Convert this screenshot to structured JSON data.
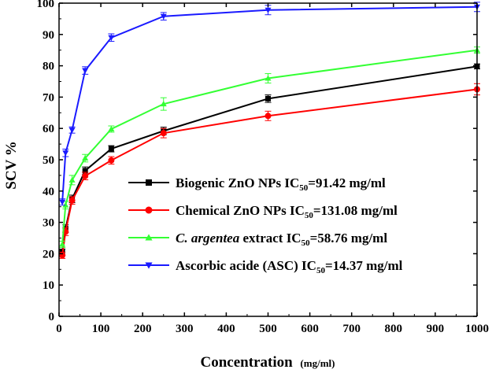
{
  "chart_data": {
    "type": "line",
    "xlabel": "Concentration",
    "xlabel_unit": "(mg/ml)",
    "ylabel": "SCV %",
    "xlim": [
      0,
      1000
    ],
    "ylim": [
      0,
      100
    ],
    "x_ticks": [
      0,
      100,
      200,
      300,
      400,
      500,
      600,
      700,
      800,
      900,
      1000
    ],
    "y_ticks": [
      0,
      10,
      20,
      30,
      40,
      50,
      60,
      70,
      80,
      90,
      100
    ],
    "grid": false,
    "legend_position": "center-right",
    "series": [
      {
        "name": "Biogenic ZnO NPs IC50=91.42 mg/ml",
        "legend_parts": [
          "Biogenic ZnO NPs IC",
          "50",
          "=91.42 mg/ml"
        ],
        "color": "#000000",
        "marker": "square",
        "x": [
          7.8,
          15.6,
          31.25,
          62.5,
          125,
          250,
          500,
          1000
        ],
        "y": [
          20.5,
          28.0,
          37.5,
          46.5,
          53.5,
          59.2,
          69.5,
          79.8
        ],
        "error": [
          1.0,
          1.2,
          1.2,
          1.2,
          1.0,
          1.2,
          1.2,
          0.8
        ]
      },
      {
        "name": "Chemical ZnO NPs IC50=131.08 mg/ml",
        "legend_parts": [
          "Chemical ZnO NPs IC",
          "50",
          "=131.08 mg/ml"
        ],
        "color": "#ff0000",
        "marker": "circle",
        "x": [
          7.8,
          15.6,
          31.25,
          62.5,
          125,
          250,
          500,
          1000
        ],
        "y": [
          19.5,
          27.0,
          37.0,
          44.8,
          49.8,
          58.5,
          64.0,
          72.5
        ],
        "error": [
          1.0,
          1.2,
          1.2,
          1.2,
          1.2,
          1.5,
          1.5,
          1.8
        ]
      },
      {
        "name": "C. argentea extract IC50=58.76 mg/ml",
        "legend_parts": [
          "C. argentea",
          " extract IC",
          "50",
          "=58.76 mg/ml"
        ],
        "color": "#33ff33",
        "marker": "triangle-up",
        "x": [
          7.8,
          15.6,
          31.25,
          62.5,
          125,
          250,
          500,
          1000
        ],
        "y": [
          23.0,
          35.5,
          43.5,
          50.5,
          59.8,
          67.8,
          76.0,
          85.0
        ],
        "error": [
          1.0,
          1.2,
          1.5,
          1.2,
          1.0,
          2.0,
          1.5,
          1.0
        ]
      },
      {
        "name": "Ascorbic acide (ASC) IC50=14.37 mg/ml",
        "legend_parts": [
          "Ascorbic acide (ASC) IC",
          "50",
          "=14.37 mg/ml"
        ],
        "color": "#1a1aff",
        "marker": "triangle-down",
        "x": [
          7.8,
          15.6,
          31.25,
          62.5,
          125,
          250,
          500,
          1000
        ],
        "y": [
          36.5,
          52.2,
          59.5,
          78.5,
          89.0,
          95.8,
          97.8,
          98.8
        ],
        "error": [
          1.0,
          1.2,
          1.0,
          1.2,
          1.2,
          1.2,
          1.5,
          1.5
        ]
      }
    ]
  }
}
